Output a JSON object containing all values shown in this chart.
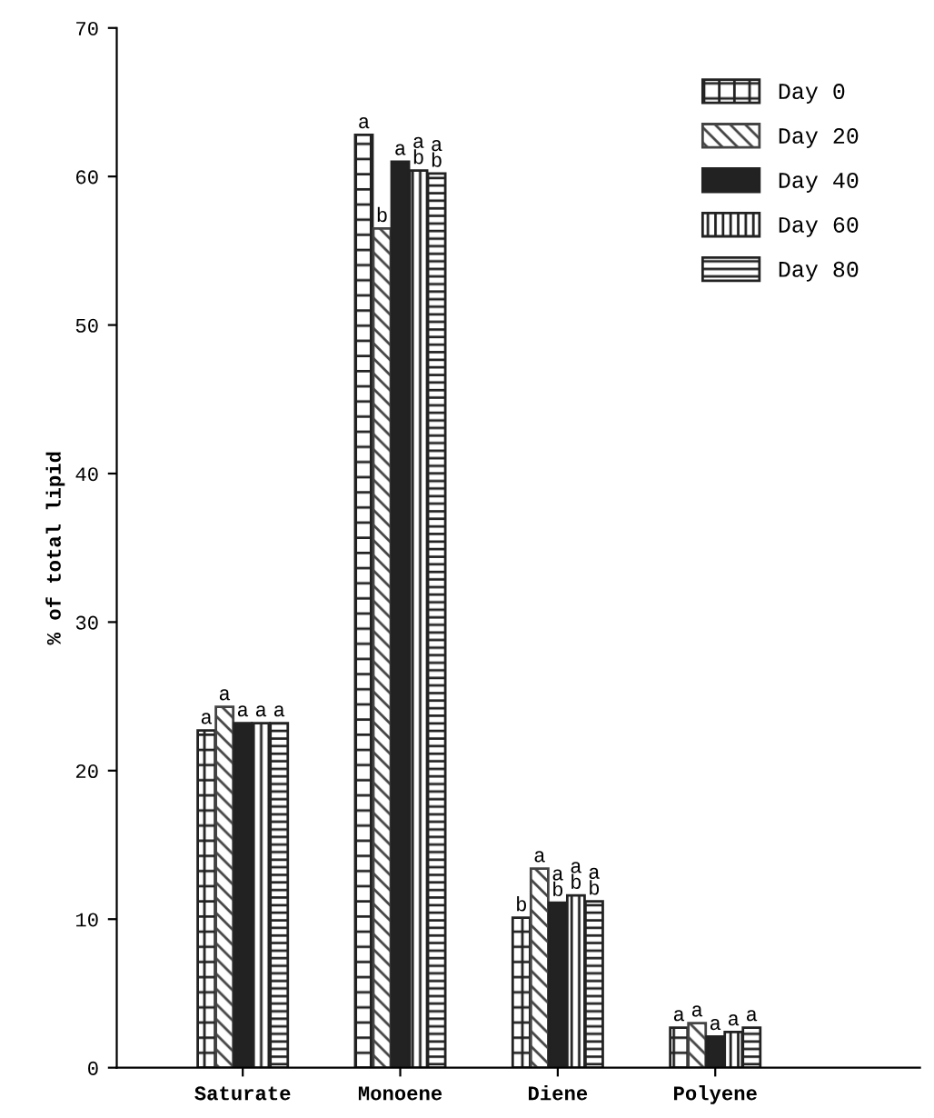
{
  "chart_data": {
    "type": "bar",
    "ylabel": "% of total lipid",
    "categories": [
      "Saturate",
      "Monoene",
      "Diene",
      "Polyene"
    ],
    "series": [
      {
        "name": "Day 0",
        "color": "#222222",
        "values": [
          22.7,
          62.8,
          10.1,
          2.7
        ],
        "value_labels": [
          "a",
          "a",
          "b",
          "a"
        ]
      },
      {
        "name": "Day 20",
        "color": "#444444",
        "values": [
          24.3,
          56.5,
          13.4,
          3.0
        ],
        "value_labels": [
          "a",
          "b",
          "a",
          "a"
        ]
      },
      {
        "name": "Day 40",
        "color": "#222222",
        "values": [
          23.2,
          61.0,
          11.1,
          2.1
        ],
        "value_labels": [
          "a",
          "a",
          "a\nb",
          "a"
        ]
      },
      {
        "name": "Day 60",
        "color": "#222222",
        "values": [
          23.2,
          60.4,
          11.6,
          2.4
        ],
        "value_labels": [
          "a",
          "a\nb",
          "a\nb",
          "a"
        ]
      },
      {
        "name": "Day 80",
        "color": "#222222",
        "values": [
          23.2,
          60.2,
          11.2,
          2.7
        ],
        "value_labels": [
          "a",
          "a\nb",
          "a\nb",
          "a"
        ]
      }
    ],
    "ylim": [
      0,
      70
    ],
    "yticks": [
      0,
      10,
      20,
      30,
      40,
      50,
      60,
      70
    ],
    "grid": false,
    "legend": "top right"
  }
}
